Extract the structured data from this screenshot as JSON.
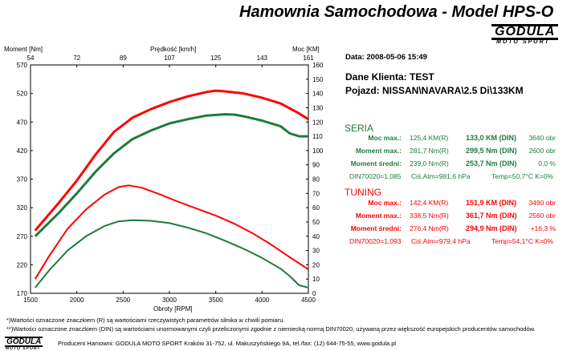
{
  "header": {
    "title": "Hamownia Samochodowa   -   Model HPS-O",
    "logo_main": "GODULA",
    "logo_sub": "MOTO SPORT"
  },
  "axes": {
    "left_title": "Moment [Nm]",
    "right_title": "Moc [KM]",
    "top_title": "Prędkość [km/h]",
    "bottom_title": "Obroty [RPM]"
  },
  "info": {
    "date": "Data: 2008-05-06  15:49",
    "client": "Dane Klienta: TEST",
    "vehicle": "Pojazd: NISSAN\\NAVARA\\2.5 Di\\133KM"
  },
  "seria": {
    "title": "SERIA",
    "color": "#1e7b3c",
    "rows": [
      {
        "label": "Moc max.:",
        "raw": "125,4 KM(R)",
        "din": "133,0 KM (DIN)",
        "extra": "3640 obr"
      },
      {
        "label": "Moment max.:",
        "raw": "281,7 Nm(R)",
        "din": "299,5 Nm (DIN)",
        "extra": "2600 obr"
      },
      {
        "label": "Moment średni:",
        "raw": "239,0 Nm(R)",
        "din": "253,7 Nm (DIN)",
        "extra": "0,0 %"
      }
    ],
    "din_line": {
      "din": "DIN70020=1,085",
      "atm": "Ciś.Atm=981,6 hPa",
      "temp": "Temp=50,7°C  K=0%"
    }
  },
  "tuning": {
    "title": "TUNING",
    "color": "#ff0000",
    "rows": [
      {
        "label": "Moc max.:",
        "raw": "142,4 KM(R)",
        "din": "151,9 KM (DIN)",
        "extra": "3490 obr"
      },
      {
        "label": "Moment max.:",
        "raw": "338,5 Nm(R)",
        "din": "361,7 Nm (DIN)",
        "extra": "2560 obr"
      },
      {
        "label": "Moment średni:",
        "raw": "276,4 Nm(R)",
        "din": "294,9 Nm (DIN)",
        "extra": "+16,3 %"
      }
    ],
    "din_line": {
      "din": "DIN70020=1,093",
      "atm": "Ciś.Atm=979,4 hPa",
      "temp": "Temp=54,1°C  K=0%"
    }
  },
  "footer": {
    "note1": "*)Wartości oznaczone znaczkiem (R) są wartościami rzeczywistych parametrów silnika w chwili pomiaru.",
    "note2": "**)Wartości oznaczone znaczkiem (DIN) są wartościami unormowanymi czyli przeliczonymi zgodnie z niemiecką normą DIN70020, używaną przez większość europejskich producentów samochodów.",
    "producer": "Producent Hamowni: GODULA MOTO SPORT Kraków 31-752, ul. Makuszyńskiego 9A, tel./fax: (12) 644-75-55, www.godula.pl",
    "logo_main": "GODULA",
    "logo_sub": "MOTO SPORT"
  },
  "chart_data": {
    "type": "line",
    "xlabel": "Obroty [RPM]",
    "ylabel": "Moment [Nm]",
    "y2label": "Moc [KM]",
    "x2label": "Prędkość [km/h]",
    "xlim": [
      1500,
      4500
    ],
    "ylim": [
      170,
      570
    ],
    "y2lim": [
      0,
      160
    ],
    "x_ticks": [
      1500,
      2000,
      2500,
      3000,
      3500,
      4000,
      4500
    ],
    "y_ticks": [
      170,
      220,
      270,
      320,
      370,
      420,
      470,
      520,
      570
    ],
    "y2_ticks": [
      0,
      10,
      20,
      30,
      40,
      50,
      60,
      70,
      80,
      90,
      100,
      110,
      120,
      130,
      140,
      150,
      160
    ],
    "x2_ticks": [
      "54",
      "72",
      "89",
      "107",
      "125",
      "143",
      "161"
    ],
    "grid": false,
    "series": [
      {
        "name": "TUNING",
        "quantity": "power",
        "axis": "right",
        "color": "#ff0000",
        "x": [
          1550,
          1800,
          2000,
          2200,
          2400,
          2600,
          2800,
          3000,
          3200,
          3400,
          3500,
          3600,
          3800,
          4000,
          4200,
          4400,
          4500
        ],
        "y": [
          44,
          63,
          79,
          97,
          113,
          123,
          129,
          134,
          138,
          141,
          142,
          141.5,
          140,
          137,
          133,
          126,
          122
        ]
      },
      {
        "name": "SERIA",
        "quantity": "power",
        "axis": "right",
        "color": "#1e7b3c",
        "x": [
          1550,
          1800,
          2000,
          2200,
          2400,
          2600,
          2800,
          3000,
          3200,
          3400,
          3600,
          3700,
          3800,
          4000,
          4200,
          4300,
          4400,
          4500
        ],
        "y": [
          40,
          56,
          70,
          85,
          98,
          108,
          114,
          119,
          122,
          124.5,
          125.4,
          125.2,
          124,
          121,
          117,
          112,
          110,
          110
        ]
      },
      {
        "name": "TUNING",
        "quantity": "torque",
        "axis": "left",
        "color": "#ff0000",
        "x": [
          1550,
          1700,
          1900,
          2100,
          2300,
          2450,
          2560,
          2700,
          2900,
          3100,
          3300,
          3500,
          3700,
          3900,
          4100,
          4300,
          4500
        ],
        "y": [
          195,
          235,
          283,
          317,
          343,
          356,
          359,
          355,
          343,
          330,
          318,
          306,
          292,
          275,
          255,
          233,
          212
        ]
      },
      {
        "name": "SERIA",
        "quantity": "torque",
        "axis": "left",
        "color": "#1e7b3c",
        "x": [
          1550,
          1700,
          1900,
          2100,
          2300,
          2450,
          2600,
          2800,
          3000,
          3200,
          3400,
          3600,
          3800,
          4000,
          4200,
          4300,
          4400,
          4500
        ],
        "y": [
          180,
          210,
          245,
          270,
          288,
          296,
          298,
          297,
          293,
          285,
          275,
          262,
          248,
          232,
          213,
          200,
          184,
          180
        ]
      }
    ]
  }
}
